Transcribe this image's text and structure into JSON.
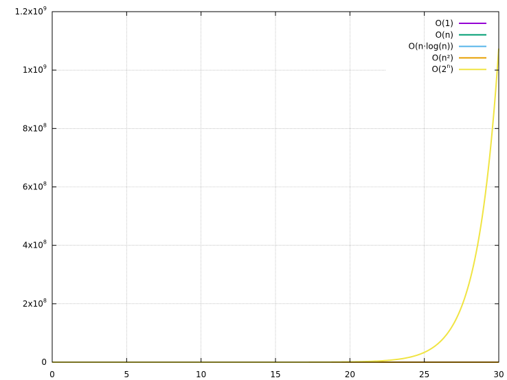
{
  "chart_data": {
    "type": "line",
    "title": "",
    "xlabel": "",
    "ylabel": "",
    "xlim": [
      0,
      30
    ],
    "ylim": [
      0,
      1200000000
    ],
    "grid": true,
    "legend_position": "top-right",
    "x_ticks": [
      {
        "value": 0,
        "label": "0"
      },
      {
        "value": 5,
        "label": "5"
      },
      {
        "value": 10,
        "label": "10"
      },
      {
        "value": 15,
        "label": "15"
      },
      {
        "value": 20,
        "label": "20"
      },
      {
        "value": 25,
        "label": "25"
      },
      {
        "value": 30,
        "label": "30"
      }
    ],
    "y_ticks": [
      {
        "value": 0,
        "base": "0",
        "exp": ""
      },
      {
        "value": 200000000,
        "base": "2x10",
        "exp": "8"
      },
      {
        "value": 400000000,
        "base": "4x10",
        "exp": "8"
      },
      {
        "value": 600000000,
        "base": "6x10",
        "exp": "8"
      },
      {
        "value": 800000000,
        "base": "8x10",
        "exp": "8"
      },
      {
        "value": 1000000000,
        "base": "1x10",
        "exp": "9"
      },
      {
        "value": 1200000000,
        "base": "1.2x10",
        "exp": "9"
      }
    ],
    "series": [
      {
        "name": "O(1)",
        "name_exp": "",
        "name_suffix": "",
        "color": "#9400d3",
        "x": [
          0,
          30
        ],
        "y": [
          1,
          1
        ]
      },
      {
        "name": "O(n)",
        "name_exp": "",
        "name_suffix": "",
        "color": "#009e73",
        "x": [
          0,
          30
        ],
        "y": [
          0,
          30
        ]
      },
      {
        "name": "O(n·log(n))",
        "name_exp": "",
        "name_suffix": "",
        "color": "#56b4e9",
        "x": [
          1,
          5,
          10,
          15,
          20,
          25,
          30
        ],
        "y": [
          0,
          8,
          23,
          41,
          60,
          80,
          102
        ]
      },
      {
        "name": "O(n²)",
        "name_exp": "",
        "name_suffix": "",
        "color": "#e69f00",
        "x": [
          0,
          5,
          10,
          15,
          20,
          25,
          30
        ],
        "y": [
          0,
          25,
          100,
          225,
          400,
          625,
          900
        ]
      },
      {
        "name": "O(2",
        "name_exp": "n",
        "name_suffix": ")",
        "color": "#f0e442",
        "x": [
          0,
          15,
          18,
          20,
          21,
          22,
          23,
          24,
          25,
          26,
          27,
          28,
          29,
          30
        ],
        "y": [
          1,
          32768,
          262144,
          1048576,
          2097152,
          4194304,
          8388608,
          16777216,
          33554432,
          67108864,
          134217728,
          268435456,
          536870912,
          1073741824
        ]
      }
    ]
  }
}
